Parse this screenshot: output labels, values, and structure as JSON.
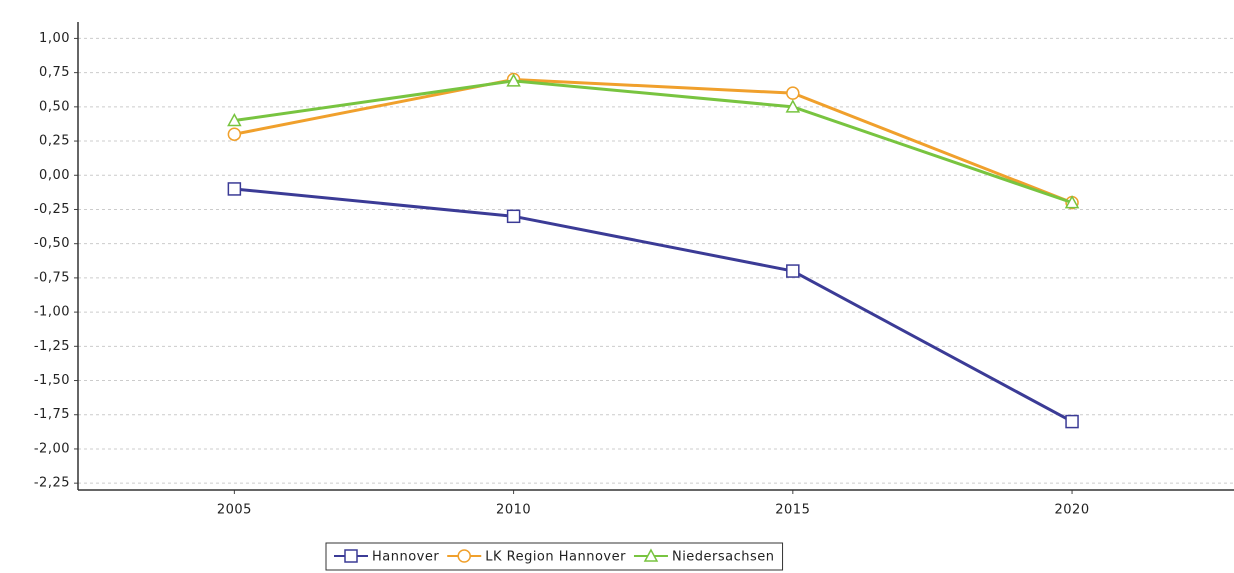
{
  "chart_data": {
    "type": "line",
    "x": [
      2005,
      2010,
      2015,
      2020
    ],
    "xlim": [
      2002.2,
      2022.9
    ],
    "xticks": [
      2005,
      2010,
      2015,
      2020
    ],
    "ylim": [
      -2.3,
      1.12
    ],
    "yticks": [
      {
        "value": 1.0,
        "label": "1,00"
      },
      {
        "value": 0.75,
        "label": "0,75"
      },
      {
        "value": 0.5,
        "label": "0,50"
      },
      {
        "value": 0.25,
        "label": "0,25"
      },
      {
        "value": 0.0,
        "label": "0,00"
      },
      {
        "value": -0.25,
        "label": "-0,25"
      },
      {
        "value": -0.5,
        "label": "-0,50"
      },
      {
        "value": -0.75,
        "label": "-0,75"
      },
      {
        "value": -1.0,
        "label": "-1,00"
      },
      {
        "value": -1.25,
        "label": "-1,25"
      },
      {
        "value": -1.5,
        "label": "-1,50"
      },
      {
        "value": -1.75,
        "label": "-1,75"
      },
      {
        "value": -2.0,
        "label": "-2,00"
      },
      {
        "value": -2.25,
        "label": "-2,25"
      }
    ],
    "grid": true,
    "legend": "bottom",
    "series": [
      {
        "name": "Hannover",
        "color": "#3b3b96",
        "marker": "square",
        "values": [
          -0.1,
          -0.3,
          -0.7,
          -1.8
        ]
      },
      {
        "name": "LK Region Hannover",
        "color": "#f0a02c",
        "marker": "circle",
        "values": [
          0.3,
          0.7,
          0.6,
          -0.2
        ]
      },
      {
        "name": "Niedersachsen",
        "color": "#78c440",
        "marker": "triangle",
        "values": [
          0.4,
          0.69,
          0.5,
          -0.2
        ]
      }
    ]
  }
}
